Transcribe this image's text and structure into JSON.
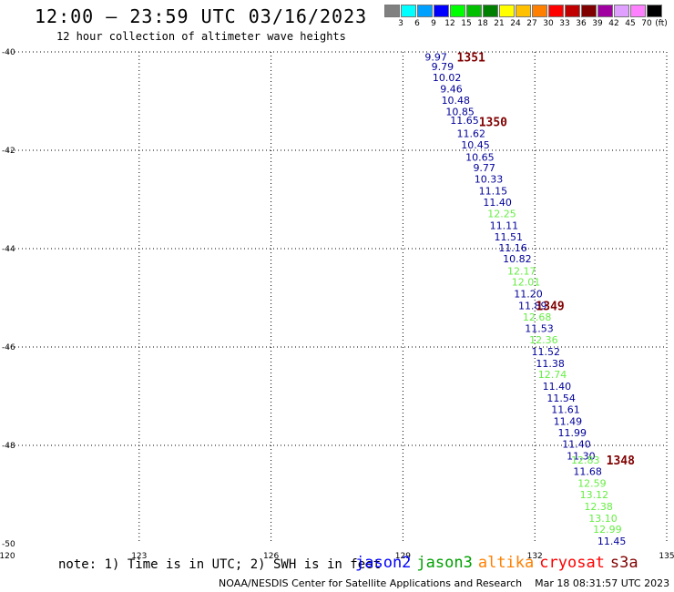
{
  "header": {
    "title": "12:00 – 23:59 UTC 03/16/2023",
    "subtitle": "12 hour collection of altimeter wave heights"
  },
  "color_scale": {
    "unit_label": "(ft)",
    "bins": [
      {
        "label": "3",
        "color": "#808080"
      },
      {
        "label": "6",
        "color": "#00ffff"
      },
      {
        "label": "9",
        "color": "#00a0ff"
      },
      {
        "label": "12",
        "color": "#0000ff"
      },
      {
        "label": "15",
        "color": "#00ff00"
      },
      {
        "label": "18",
        "color": "#00c000"
      },
      {
        "label": "21",
        "color": "#008000"
      },
      {
        "label": "24",
        "color": "#ffff00"
      },
      {
        "label": "27",
        "color": "#ffc000"
      },
      {
        "label": "30",
        "color": "#ff8000"
      },
      {
        "label": "33",
        "color": "#ff0000"
      },
      {
        "label": "36",
        "color": "#c00000"
      },
      {
        "label": "39",
        "color": "#800000"
      },
      {
        "label": "42",
        "color": "#a000a0"
      },
      {
        "label": "45",
        "color": "#e0a0ff"
      },
      {
        "label": "70",
        "color": "#ff80ff"
      },
      {
        "label": "",
        "color": "#000000"
      }
    ]
  },
  "chart_data": {
    "type": "scatter",
    "title": "12:00 – 23:59 UTC 03/16/2023",
    "subtitle": "12 hour collection of altimeter wave heights",
    "xlim": [
      120,
      135
    ],
    "ylim": [
      -50,
      -40
    ],
    "x_ticks": [
      "120",
      "123",
      "126",
      "129",
      "132",
      "135"
    ],
    "y_ticks": [
      "-40",
      "-42",
      "-44",
      "-46",
      "-48",
      "-50"
    ],
    "y_tick_values": [
      -40,
      -42,
      -44,
      -46,
      -48,
      -50
    ],
    "x_tick_values": [
      120,
      123,
      126,
      129,
      132,
      135
    ],
    "grid": true,
    "series_colors": {
      "jason2": "#0000ff",
      "jason3": "#00a000",
      "altika": "#ff8000",
      "cryosat": "#ff0000",
      "s3a": "#800000",
      "light_green": "#66ee44",
      "navy": "#000099",
      "time_label": "#800000"
    },
    "points": [
      {
        "lon": 129.75,
        "lat": -40.1,
        "text": "9.97",
        "color": "navy"
      },
      {
        "lon": 129.9,
        "lat": -40.3,
        "text": "9.79",
        "color": "navy"
      },
      {
        "lon": 130.0,
        "lat": -40.52,
        "text": "10.02",
        "color": "navy"
      },
      {
        "lon": 130.1,
        "lat": -40.75,
        "text": "9.46",
        "color": "navy"
      },
      {
        "lon": 130.2,
        "lat": -40.98,
        "text": "10.48",
        "color": "navy"
      },
      {
        "lon": 130.3,
        "lat": -41.21,
        "text": "10.85",
        "color": "navy"
      },
      {
        "lon": 130.4,
        "lat": -41.39,
        "text": "11.65",
        "color": "navy"
      },
      {
        "lon": 130.55,
        "lat": -41.66,
        "text": "11.62",
        "color": "navy"
      },
      {
        "lon": 130.65,
        "lat": -41.89,
        "text": "10.45",
        "color": "navy"
      },
      {
        "lon": 130.75,
        "lat": -42.14,
        "text": "10.65",
        "color": "navy"
      },
      {
        "lon": 130.85,
        "lat": -42.35,
        "text": "9.77",
        "color": "navy"
      },
      {
        "lon": 130.95,
        "lat": -42.58,
        "text": "10.33",
        "color": "navy"
      },
      {
        "lon": 131.05,
        "lat": -42.82,
        "text": "11.15",
        "color": "navy"
      },
      {
        "lon": 131.15,
        "lat": -43.06,
        "text": "11.40",
        "color": "navy"
      },
      {
        "lon": 131.25,
        "lat": -43.29,
        "text": "12.25",
        "color": "light_green"
      },
      {
        "lon": 131.3,
        "lat": -43.53,
        "text": "11.11",
        "color": "navy"
      },
      {
        "lon": 131.4,
        "lat": -43.76,
        "text": "11.51",
        "color": "navy"
      },
      {
        "lon": 131.5,
        "lat": -43.98,
        "text": "11.16",
        "color": "navy"
      },
      {
        "lon": 131.6,
        "lat": -44.2,
        "text": "10.82",
        "color": "navy"
      },
      {
        "lon": 131.7,
        "lat": -44.45,
        "text": "12.17",
        "color": "light_green"
      },
      {
        "lon": 131.8,
        "lat": -44.68,
        "text": "12.01",
        "color": "light_green"
      },
      {
        "lon": 131.85,
        "lat": -44.92,
        "text": "11.20",
        "color": "navy"
      },
      {
        "lon": 131.95,
        "lat": -45.16,
        "text": "11.89",
        "color": "navy"
      },
      {
        "lon": 132.05,
        "lat": -45.39,
        "text": "12.68",
        "color": "light_green"
      },
      {
        "lon": 132.1,
        "lat": -45.62,
        "text": "11.53",
        "color": "navy"
      },
      {
        "lon": 132.2,
        "lat": -45.85,
        "text": "12.36",
        "color": "light_green"
      },
      {
        "lon": 132.25,
        "lat": -46.09,
        "text": "11.52",
        "color": "navy"
      },
      {
        "lon": 132.35,
        "lat": -46.33,
        "text": "11.38",
        "color": "navy"
      },
      {
        "lon": 132.4,
        "lat": -46.56,
        "text": "12.74",
        "color": "light_green"
      },
      {
        "lon": 132.5,
        "lat": -46.8,
        "text": "11.40",
        "color": "navy"
      },
      {
        "lon": 132.6,
        "lat": -47.04,
        "text": "11.54",
        "color": "navy"
      },
      {
        "lon": 132.7,
        "lat": -47.27,
        "text": "11.61",
        "color": "navy"
      },
      {
        "lon": 132.75,
        "lat": -47.51,
        "text": "11.49",
        "color": "navy"
      },
      {
        "lon": 132.85,
        "lat": -47.74,
        "text": "11.99",
        "color": "navy"
      },
      {
        "lon": 132.95,
        "lat": -47.97,
        "text": "11.40",
        "color": "navy"
      },
      {
        "lon": 133.05,
        "lat": -48.21,
        "text": "11.30",
        "color": "navy"
      },
      {
        "lon": 133.15,
        "lat": -48.3,
        "text": "12.83",
        "color": "light_green"
      },
      {
        "lon": 133.2,
        "lat": -48.53,
        "text": "11.68",
        "color": "navy"
      },
      {
        "lon": 133.3,
        "lat": -48.77,
        "text": "12.59",
        "color": "light_green"
      },
      {
        "lon": 133.35,
        "lat": -49.0,
        "text": "13.12",
        "color": "light_green"
      },
      {
        "lon": 133.45,
        "lat": -49.24,
        "text": "12.38",
        "color": "light_green"
      },
      {
        "lon": 133.55,
        "lat": -49.48,
        "text": "13.10",
        "color": "light_green"
      },
      {
        "lon": 133.65,
        "lat": -49.7,
        "text": "12.99",
        "color": "light_green"
      },
      {
        "lon": 133.75,
        "lat": -49.94,
        "text": "11.45",
        "color": "navy"
      }
    ],
    "time_labels": [
      {
        "lon": 130.55,
        "lat": -40.1,
        "text": "1351"
      },
      {
        "lon": 131.05,
        "lat": -41.42,
        "text": "1350"
      },
      {
        "lon": 132.35,
        "lat": -45.16,
        "text": "1349"
      },
      {
        "lon": 133.95,
        "lat": -48.3,
        "text": "1348"
      }
    ]
  },
  "footer": {
    "note": "note: 1) Time is in UTC; 2) SWH is in feet",
    "legend": [
      {
        "label": "jason2",
        "color": "#0000ff"
      },
      {
        "label": "jason3",
        "color": "#00a000"
      },
      {
        "label": "altika",
        "color": "#ff8000"
      },
      {
        "label": "cryosat",
        "color": "#ff0000"
      },
      {
        "label": "s3a",
        "color": "#800000"
      }
    ],
    "credit": "NOAA/NESDIS Center for Satellite Applications and Research",
    "timestamp": "Mar 18 08:31:57 UTC 2023"
  }
}
